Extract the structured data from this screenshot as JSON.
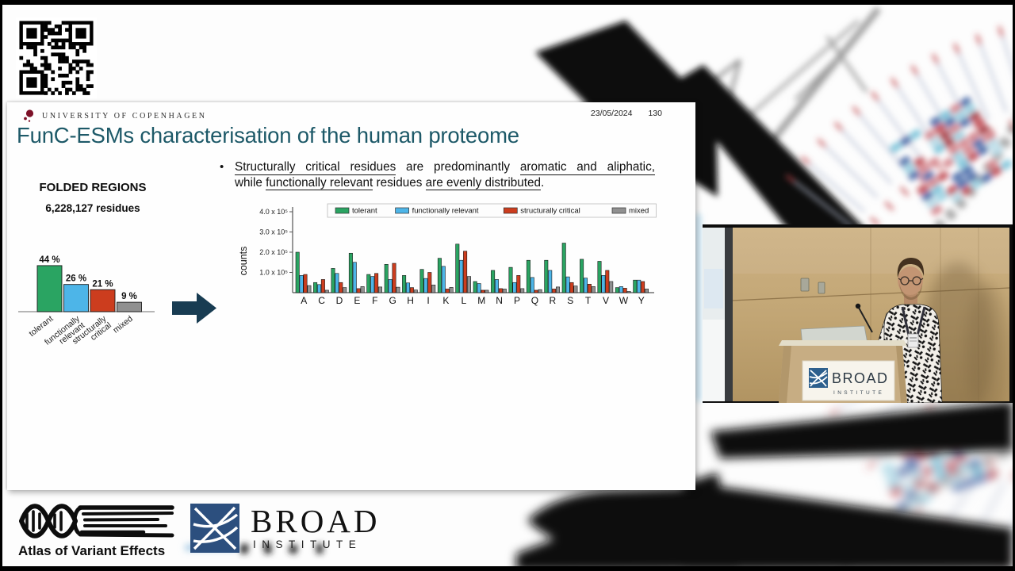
{
  "slide": {
    "university": "UNIVERSITY OF COPENHAGEN",
    "date": "23/05/2024",
    "page": "130",
    "title": "FunC-ESMs characterisation of the human proteome",
    "bullet_lines": [
      [
        {
          "t": "Structurally critical residues",
          "u": 1
        },
        {
          "t": " are predominantly ",
          "u": 0
        },
        {
          "t": "aromatic and aliphatic,",
          "u": 1
        }
      ],
      [
        {
          "t": "while ",
          "u": 0
        },
        {
          "t": "functionally relevant",
          "u": 1
        },
        {
          "t": " residues ",
          "u": 0
        },
        {
          "t": "are evenly distributed",
          "u": 1
        },
        {
          "t": ".",
          "u": 0
        }
      ]
    ],
    "folded_regions_title": "FOLDED REGIONS",
    "folded_regions_subtitle": "6,228,127 residues"
  },
  "colors": {
    "title": "#1d5968",
    "arrow": "#183c52",
    "tolerant": "#2aa462",
    "functionally_relevant": "#4db5e8",
    "structurally_critical": "#cc3d1e",
    "mixed": "#909090"
  },
  "icons": {
    "qr": "qr-code",
    "university_seal": "dark-red-dot-seal",
    "arrow": "block-arrow-right",
    "ave": "dna-helix-book-logo",
    "broad": "blue-square-weave-logomark"
  },
  "chart_data": [
    {
      "id": "folded-regions-breakdown",
      "type": "bar",
      "categories": [
        "tolerant",
        "functionally relevant",
        "structurally critical",
        "mixed"
      ],
      "categories_lines": [
        [
          "tolerant"
        ],
        [
          "functionally",
          "relevant"
        ],
        [
          "structurally",
          "critical"
        ],
        [
          "mixed"
        ]
      ],
      "values": [
        44,
        26,
        21,
        9
      ],
      "value_labels": [
        "44 %",
        "26 %",
        "21 %",
        "9 %"
      ],
      "colors": [
        "#2aa462",
        "#4db5e8",
        "#cc3d1e",
        "#909090"
      ],
      "title": "FOLDED REGIONS",
      "subtitle": "6,228,127 residues",
      "ylim": [
        0,
        50
      ],
      "grid": false
    },
    {
      "id": "amino-acid-category-counts",
      "type": "grouped-bar",
      "categories": [
        "A",
        "C",
        "D",
        "E",
        "F",
        "G",
        "H",
        "I",
        "K",
        "L",
        "M",
        "N",
        "P",
        "Q",
        "R",
        "S",
        "T",
        "V",
        "W",
        "Y"
      ],
      "series": [
        {
          "name": "tolerant",
          "color": "#2aa462",
          "values": [
            2.0,
            0.5,
            1.2,
            1.95,
            0.9,
            1.4,
            0.85,
            1.15,
            1.7,
            2.4,
            0.55,
            1.1,
            1.25,
            1.6,
            1.6,
            2.45,
            1.65,
            1.55,
            0.25,
            0.62
          ]
        },
        {
          "name": "functionally relevant",
          "color": "#4db5e8",
          "values": [
            0.85,
            0.4,
            0.95,
            1.5,
            0.8,
            0.65,
            0.48,
            0.7,
            1.3,
            1.6,
            0.45,
            0.65,
            0.5,
            0.75,
            1.1,
            0.78,
            0.72,
            0.85,
            0.3,
            0.62
          ]
        },
        {
          "name": "structurally critical",
          "color": "#cc3d1e",
          "values": [
            0.9,
            0.65,
            0.5,
            0.2,
            0.95,
            1.45,
            0.25,
            1.0,
            0.18,
            2.05,
            0.12,
            0.2,
            0.85,
            0.12,
            0.18,
            0.5,
            0.42,
            1.1,
            0.22,
            0.55
          ]
        },
        {
          "name": "mixed",
          "color": "#909090",
          "values": [
            0.35,
            0.12,
            0.25,
            0.3,
            0.28,
            0.27,
            0.13,
            0.38,
            0.26,
            0.8,
            0.12,
            0.18,
            0.2,
            0.15,
            0.28,
            0.33,
            0.3,
            0.55,
            0.06,
            0.18
          ]
        }
      ],
      "value_unit": "1e5",
      "ylabel": "counts",
      "ytick_values": [
        1,
        2,
        3,
        4
      ],
      "ytick_labels": [
        "1.0 x 10⁵",
        "2.0 x 10⁵",
        "3.0 x 10⁵",
        "4.0 x 10⁵"
      ],
      "ylim": [
        0,
        4.35
      ],
      "legend_position": "top",
      "grid": false
    }
  ],
  "footer": {
    "ave_label": "Atlas of Variant Effects",
    "broad_name": "BROAD",
    "broad_sub": "INSTITUTE"
  },
  "video": {
    "sign_name": "BROAD",
    "sign_sub": "INSTITUTE"
  }
}
